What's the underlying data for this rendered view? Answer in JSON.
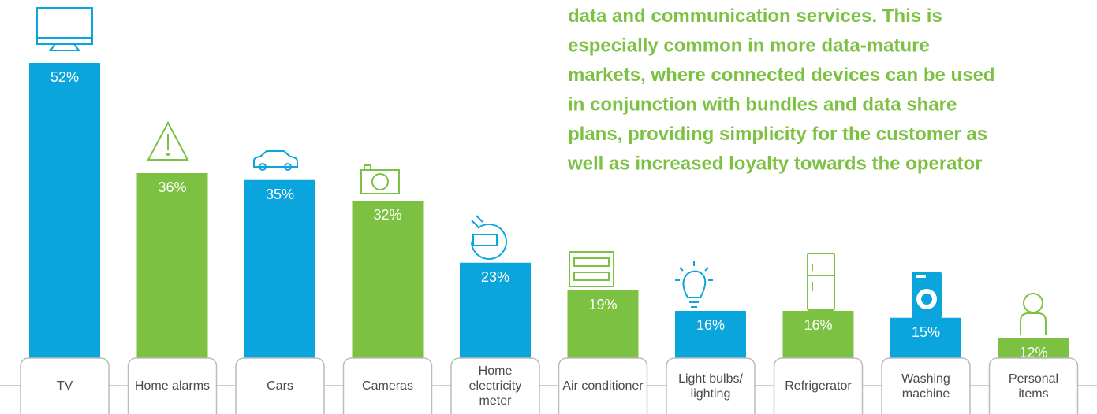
{
  "chart_data": {
    "type": "bar",
    "annotation_lines": [
      "data and communication services. This is",
      "especially common in more data-mature",
      "markets, where connected devices can be used",
      "in conjunction with bundles and data share",
      "plans, providing simplicity for the customer as",
      "well as increased loyalty towards the operator"
    ],
    "categories": [
      "TV",
      "Home alarms",
      "Cars",
      "Cameras",
      "Home electricity meter",
      "Air conditioner",
      "Light bulbs/ lighting",
      "Refrigerator",
      "Washing machine",
      "Personal items"
    ],
    "values": [
      52,
      36,
      35,
      32,
      23,
      19,
      16,
      16,
      15,
      12
    ],
    "value_labels": [
      "52%",
      "36%",
      "35%",
      "32%",
      "23%",
      "19%",
      "16%",
      "16%",
      "15%",
      "12%"
    ],
    "colors": [
      "#0aa5dc",
      "#7dc142",
      "#0aa5dc",
      "#7dc142",
      "#0aa5dc",
      "#7dc142",
      "#0aa5dc",
      "#7dc142",
      "#0aa5dc",
      "#7dc142"
    ],
    "ylim": [
      0,
      60
    ]
  }
}
